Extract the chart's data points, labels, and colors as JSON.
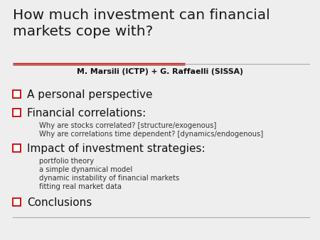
{
  "title_line1": "How much investment can financial",
  "title_line2": "markets cope with?",
  "author": "M. Marsili (ICTP) + G. Raffaelli (SISSA)",
  "bullet_items": [
    {
      "main": "A personal perspective",
      "sub": []
    },
    {
      "main": "Financial correlations:",
      "sub": [
        "Why are stocks correlated? [structure/exogenous]",
        "Why are correlations time dependent? [dynamics/endogenous]"
      ]
    },
    {
      "main": "Impact of investment strategies:",
      "sub": [
        "portfolio theory",
        "a simple dynamical model",
        "dynamic instability of financial markets",
        "fitting real market data"
      ]
    },
    {
      "main": "Conclusions",
      "sub": []
    }
  ],
  "bg_color": "#eeeeee",
  "title_color": "#1a1a1a",
  "author_color": "#111111",
  "bullet_main_color": "#111111",
  "bullet_sub_color": "#333333",
  "checkbox_color": "#cc0000",
  "rule_color_thick": "#cc0000",
  "rule_color_thin": "#aaaaaa",
  "title_fontsize": 14.5,
  "author_fontsize": 7.8,
  "bullet_main_fontsize": 11.0,
  "bullet_sub_fontsize": 7.2
}
